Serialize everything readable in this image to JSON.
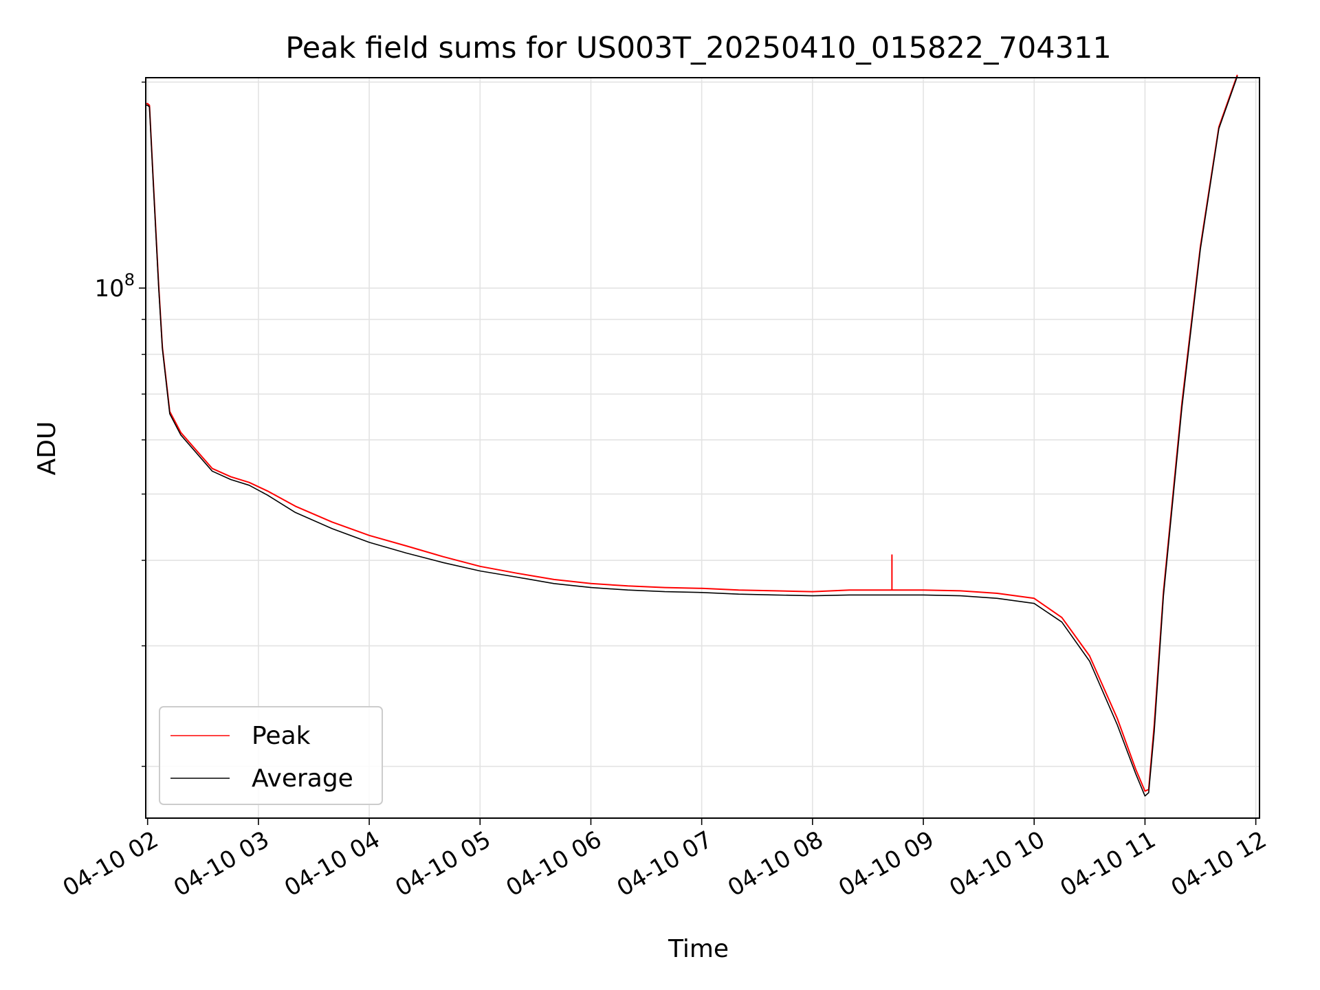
{
  "chart_data": {
    "type": "line",
    "title": "Peak field sums for US003T_20250410_015822_704311",
    "xlabel": "Time",
    "ylabel": "ADU",
    "yscale": "log",
    "ylim": [
      16800000,
      203000000
    ],
    "xlim": [
      "04-10 01:59",
      "04-10 12:02"
    ],
    "grid": true,
    "legend_position": "lower-left",
    "x_ticks": [
      "04-10 02",
      "04-10 03",
      "04-10 04",
      "04-10 05",
      "04-10 06",
      "04-10 07",
      "04-10 08",
      "04-10 09",
      "04-10 10",
      "04-10 11",
      "04-10 12"
    ],
    "y_ticks": [
      {
        "label_base": "10",
        "label_exp": "8",
        "value": 100000000
      }
    ],
    "y_minor_ticks": [
      20000000,
      30000000,
      40000000,
      50000000,
      60000000,
      70000000,
      80000000,
      90000000,
      200000000
    ],
    "series": [
      {
        "name": "Peak",
        "color": "#ff0000",
        "points": [
          [
            "04-10 01:59",
            186000000.0
          ],
          [
            "04-10 02:00",
            186000000.0
          ],
          [
            "04-10 02:01",
            185000000.0
          ],
          [
            "04-10 02:03",
            145000000.0
          ],
          [
            "04-10 02:06",
            101000000.0
          ],
          [
            "04-10 02:08",
            82000000.0
          ],
          [
            "04-10 02:12",
            66000000.0
          ],
          [
            "04-10 02:18",
            61500000.0
          ],
          [
            "04-10 02:25",
            58500000.0
          ],
          [
            "04-10 02:35",
            54500000.0
          ],
          [
            "04-10 02:45",
            53000000.0
          ],
          [
            "04-10 02:55",
            52000000.0
          ],
          [
            "04-10 03:05",
            50500000.0
          ],
          [
            "04-10 03:20",
            48000000.0
          ],
          [
            "04-10 03:40",
            45500000.0
          ],
          [
            "04-10 04:00",
            43500000.0
          ],
          [
            "04-10 04:20",
            42000000.0
          ],
          [
            "04-10 04:40",
            40500000.0
          ],
          [
            "04-10 05:00",
            39200000.0
          ],
          [
            "04-10 05:20",
            38300000.0
          ],
          [
            "04-10 05:40",
            37500000.0
          ],
          [
            "04-10 06:00",
            37000000.0
          ],
          [
            "04-10 06:20",
            36700000.0
          ],
          [
            "04-10 06:40",
            36500000.0
          ],
          [
            "04-10 07:00",
            36400000.0
          ],
          [
            "04-10 07:20",
            36200000.0
          ],
          [
            "04-10 07:40",
            36100000.0
          ],
          [
            "04-10 08:00",
            36000000.0
          ],
          [
            "04-10 08:20",
            36200000.0
          ],
          [
            "04-10 08:40",
            36200000.0
          ],
          [
            "04-10 09:00",
            36200000.0
          ],
          [
            "04-10 09:20",
            36100000.0
          ],
          [
            "04-10 09:40",
            35800000.0
          ],
          [
            "04-10 10:00",
            35200000.0
          ],
          [
            "04-10 10:15",
            33000000.0
          ],
          [
            "04-10 10:30",
            29000000.0
          ],
          [
            "04-10 10:45",
            23500000.0
          ],
          [
            "04-10 10:55",
            19800000.0
          ],
          [
            "04-10 11:00",
            18400000.0
          ],
          [
            "04-10 11:02",
            18500000.0
          ],
          [
            "04-10 11:05",
            23000000.0
          ],
          [
            "04-10 11:10",
            36000000.0
          ],
          [
            "04-10 11:20",
            68000000.0
          ],
          [
            "04-10 11:30",
            115000000.0
          ],
          [
            "04-10 11:40",
            172000000.0
          ],
          [
            "04-10 11:50",
            205000000.0
          ]
        ]
      },
      {
        "name": "Average",
        "color": "#000000",
        "points": [
          [
            "04-10 01:59",
            185000000.0
          ],
          [
            "04-10 02:00",
            185000000.0
          ],
          [
            "04-10 02:01",
            184000000.0
          ],
          [
            "04-10 02:03",
            144000000.0
          ],
          [
            "04-10 02:06",
            100000000.0
          ],
          [
            "04-10 02:08",
            81500000.0
          ],
          [
            "04-10 02:12",
            65500000.0
          ],
          [
            "04-10 02:18",
            61000000.0
          ],
          [
            "04-10 02:25",
            58000000.0
          ],
          [
            "04-10 02:35",
            54000000.0
          ],
          [
            "04-10 02:45",
            52500000.0
          ],
          [
            "04-10 02:55",
            51500000.0
          ],
          [
            "04-10 03:05",
            49800000.0
          ],
          [
            "04-10 03:20",
            47000000.0
          ],
          [
            "04-10 03:40",
            44500000.0
          ],
          [
            "04-10 04:00",
            42500000.0
          ],
          [
            "04-10 04:20",
            41000000.0
          ],
          [
            "04-10 04:40",
            39700000.0
          ],
          [
            "04-10 05:00",
            38600000.0
          ],
          [
            "04-10 05:20",
            37800000.0
          ],
          [
            "04-10 05:40",
            37000000.0
          ],
          [
            "04-10 06:00",
            36500000.0
          ],
          [
            "04-10 06:20",
            36200000.0
          ],
          [
            "04-10 06:40",
            36000000.0
          ],
          [
            "04-10 07:00",
            35900000.0
          ],
          [
            "04-10 07:20",
            35700000.0
          ],
          [
            "04-10 07:40",
            35600000.0
          ],
          [
            "04-10 08:00",
            35500000.0
          ],
          [
            "04-10 08:20",
            35600000.0
          ],
          [
            "04-10 08:40",
            35600000.0
          ],
          [
            "04-10 09:00",
            35600000.0
          ],
          [
            "04-10 09:20",
            35500000.0
          ],
          [
            "04-10 09:40",
            35200000.0
          ],
          [
            "04-10 10:00",
            34600000.0
          ],
          [
            "04-10 10:15",
            32500000.0
          ],
          [
            "04-10 10:30",
            28500000.0
          ],
          [
            "04-10 10:45",
            23000000.0
          ],
          [
            "04-10 10:55",
            19500000.0
          ],
          [
            "04-10 11:00",
            18100000.0
          ],
          [
            "04-10 11:02",
            18300000.0
          ],
          [
            "04-10 11:05",
            22500000.0
          ],
          [
            "04-10 11:10",
            35500000.0
          ],
          [
            "04-10 11:20",
            67000000.0
          ],
          [
            "04-10 11:30",
            114000000.0
          ],
          [
            "04-10 11:40",
            171000000.0
          ],
          [
            "04-10 11:50",
            204000000.0
          ]
        ]
      }
    ],
    "spikes": [
      {
        "series": "Peak",
        "x": "04-10 08:43",
        "y": 40800000.0
      }
    ]
  }
}
